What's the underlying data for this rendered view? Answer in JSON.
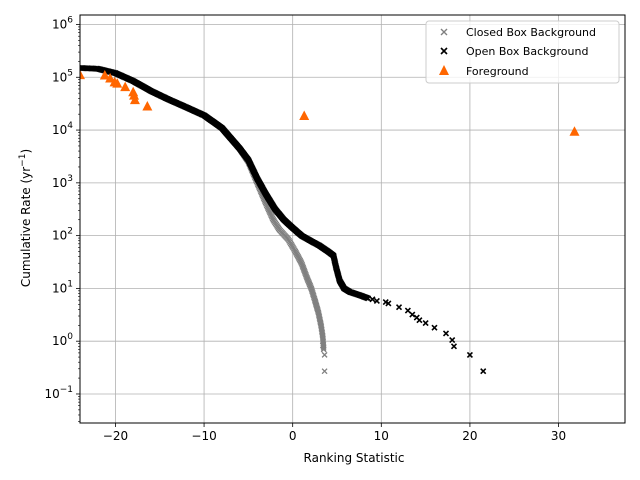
{
  "chart_data": {
    "type": "scatter",
    "xlabel": "Ranking Statistic",
    "ylabel": "Cumulative Rate (yr",
    "ylabel_sup": "−1",
    "ylabel_end": ")",
    "xlim": [
      -24,
      37.5
    ],
    "ylim_log10": [
      -1.55,
      6.18
    ],
    "x_ticks": [
      -20,
      -10,
      0,
      10,
      20,
      30
    ],
    "x_tick_labels": [
      "−20",
      "−10",
      "0",
      "10",
      "20",
      "30"
    ],
    "y_ticks_log10": [
      -1,
      0,
      1,
      2,
      3,
      4,
      5,
      6
    ],
    "y_tick_base": "10",
    "y_tick_exponents": [
      "−1",
      "0",
      "1",
      "2",
      "3",
      "4",
      "5",
      "6"
    ],
    "grid": true,
    "legend_position": "top-right",
    "colors": {
      "closed": "#808080",
      "open": "#000000",
      "foreground": "#ff6600"
    },
    "series": [
      {
        "name": "Closed Box Background",
        "marker": "x",
        "curve": [
          [
            -24,
            150000
          ],
          [
            -22,
            145000
          ],
          [
            -20,
            120000
          ],
          [
            -18,
            85000
          ],
          [
            -16,
            55000
          ],
          [
            -14,
            38000
          ],
          [
            -12,
            27000
          ],
          [
            -10,
            19000
          ],
          [
            -8,
            11000
          ],
          [
            -6,
            4500
          ],
          [
            -5,
            2500
          ],
          [
            -4,
            1000
          ],
          [
            -3,
            400
          ],
          [
            -2.2,
            200
          ],
          [
            -1.5,
            130
          ],
          [
            -0.5,
            85
          ],
          [
            0.3,
            50
          ],
          [
            1,
            30
          ],
          [
            1.6,
            16
          ],
          [
            2.1,
            10
          ],
          [
            2.5,
            6
          ],
          [
            2.9,
            3.5
          ],
          [
            3.2,
            2
          ],
          [
            3.4,
            1.2
          ],
          [
            3.5,
            0.7
          ]
        ],
        "points": [
          [
            3.4,
            0.83
          ],
          [
            3.6,
            0.55
          ],
          [
            3.6,
            0.27
          ]
        ]
      },
      {
        "name": "Open Box Background",
        "marker": "x",
        "curve": [
          [
            -24,
            150000
          ],
          [
            -22,
            145000
          ],
          [
            -20,
            120000
          ],
          [
            -18,
            85000
          ],
          [
            -16,
            55000
          ],
          [
            -14,
            38000
          ],
          [
            -12,
            27000
          ],
          [
            -10,
            19000
          ],
          [
            -8,
            11000
          ],
          [
            -6,
            4500
          ],
          [
            -5,
            2700
          ],
          [
            -4,
            1200
          ],
          [
            -3,
            600
          ],
          [
            -2,
            320
          ],
          [
            -1,
            200
          ],
          [
            0,
            140
          ],
          [
            1,
            100
          ],
          [
            2,
            80
          ],
          [
            3,
            65
          ],
          [
            4,
            50
          ],
          [
            4.6,
            42
          ],
          [
            4.9,
            25
          ],
          [
            5.3,
            14
          ],
          [
            5.8,
            10
          ],
          [
            6.5,
            8.5
          ],
          [
            7.5,
            7.5
          ],
          [
            8.5,
            6.5
          ]
        ],
        "points": [
          [
            9,
            6.2
          ],
          [
            9.5,
            5.8
          ],
          [
            10.5,
            5.5
          ],
          [
            10.8,
            5.2
          ],
          [
            12,
            4.4
          ],
          [
            13,
            3.8
          ],
          [
            13.5,
            3.2
          ],
          [
            14,
            2.8
          ],
          [
            14.3,
            2.5
          ],
          [
            15,
            2.2
          ],
          [
            16,
            1.8
          ],
          [
            17.3,
            1.4
          ],
          [
            18,
            1.05
          ],
          [
            18.2,
            0.8
          ],
          [
            20,
            0.55
          ],
          [
            21.5,
            0.27
          ]
        ]
      },
      {
        "name": "Foreground",
        "marker": "^",
        "points": [
          [
            -24,
            110000
          ],
          [
            -21.2,
            108000
          ],
          [
            -20.6,
            95000
          ],
          [
            -20.1,
            80000
          ],
          [
            -19.8,
            76000
          ],
          [
            -18.9,
            65000
          ],
          [
            -18,
            52000
          ],
          [
            -17.9,
            45000
          ],
          [
            -17.8,
            37000
          ],
          [
            -16.4,
            28000
          ],
          [
            1.3,
            18500
          ],
          [
            31.8,
            9300
          ]
        ]
      }
    ]
  }
}
